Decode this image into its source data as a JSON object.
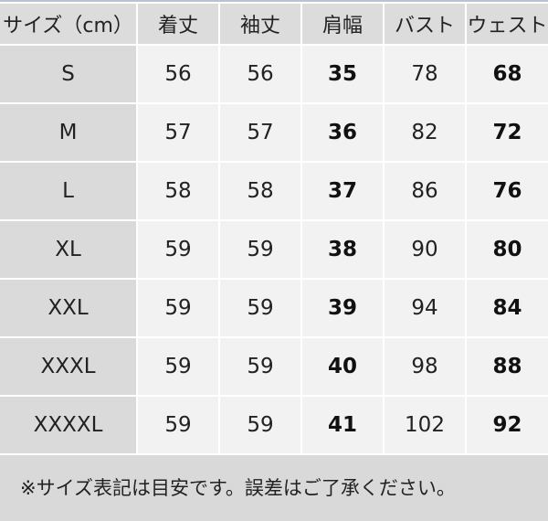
{
  "headers": [
    "サイズ（cm）",
    "着丈",
    "袖丈",
    "肩幅",
    "バスト",
    "ウェスト"
  ],
  "rows": [
    [
      "S",
      "56",
      "56",
      "35",
      "78",
      "68"
    ],
    [
      "M",
      "57",
      "57",
      "36",
      "82",
      "72"
    ],
    [
      "L",
      "58",
      "58",
      "37",
      "86",
      "76"
    ],
    [
      "XL",
      "59",
      "59",
      "38",
      "90",
      "80"
    ],
    [
      "XXL",
      "59",
      "59",
      "39",
      "94",
      "84"
    ],
    [
      "XXXL",
      "59",
      "59",
      "40",
      "98",
      "88"
    ],
    [
      "XXXXL",
      "59",
      "59",
      "41",
      "102",
      "92"
    ]
  ],
  "bold_columns": [
    3,
    5
  ],
  "note": "※サイズ表記は目安です。誤差はご了承ください。"
}
